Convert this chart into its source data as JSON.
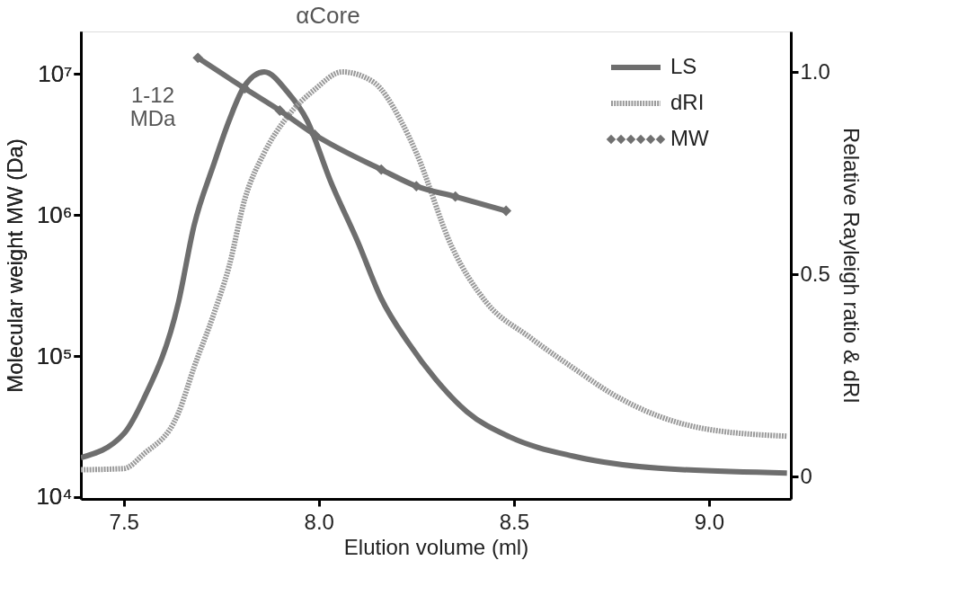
{
  "chart_data": {
    "type": "line",
    "title": "αCore",
    "xlabel": "Elution volume (ml)",
    "ylabel": "Molecular weight MW (Da)",
    "y2label": "Relative Rayleigh ratio & dRI",
    "annotations": [
      "1-12\nMDa"
    ],
    "xlim": [
      7.39,
      9.21
    ],
    "xticks": [
      7.5,
      {
        "value": 8.0,
        "label": "8.0"
      },
      8.5,
      {
        "value": 9.0,
        "label": "9.0"
      }
    ],
    "ylim": [
      9700,
      20000000
    ],
    "yticks": [
      {
        "value": 10000,
        "label": "10⁴"
      },
      {
        "value": 100000,
        "label": "10⁵"
      },
      {
        "value": 1000000,
        "label": "10⁶"
      },
      {
        "value": 10000000,
        "label": "10⁷"
      }
    ],
    "y2lim": [
      -0.055,
      1.1
    ],
    "y2ticks": [
      0,
      0.5,
      {
        "value": 1.0,
        "label": "1.0"
      }
    ],
    "log": "y",
    "grid": false,
    "legend": "top right",
    "series": [
      {
        "name": "LS",
        "color": "#6e6e6e",
        "axis": "y2",
        "line_style": "solid",
        "marker": "none",
        "x": [
          7.39,
          7.5,
          7.55,
          7.64,
          7.68,
          7.73,
          7.77,
          7.81,
          7.86,
          7.92,
          7.97,
          8.03,
          8.1,
          8.16,
          8.23,
          8.3,
          8.38,
          8.49,
          8.65,
          8.87,
          9.2
        ],
        "values": [
          0.047,
          0.106,
          0.19,
          0.43,
          0.62,
          0.77,
          0.88,
          0.966,
          1.0,
          0.95,
          0.88,
          0.73,
          0.58,
          0.44,
          0.33,
          0.24,
          0.16,
          0.098,
          0.051,
          0.021,
          0.009
        ]
      },
      {
        "name": "dRI",
        "color": "#9a9a9a",
        "axis": "y2",
        "line_style": "dotted",
        "marker": "none",
        "x": [
          7.39,
          7.5,
          7.55,
          7.64,
          7.68,
          7.73,
          7.77,
          7.81,
          7.86,
          7.92,
          7.99,
          8.06,
          8.14,
          8.21,
          8.25,
          8.34,
          8.43,
          8.54,
          8.65,
          8.76,
          8.87,
          8.98,
          9.2
        ],
        "values": [
          0.017,
          0.02,
          0.055,
          0.157,
          0.27,
          0.4,
          0.52,
          0.685,
          0.8,
          0.89,
          0.957,
          1.0,
          0.975,
          0.88,
          0.8,
          0.57,
          0.43,
          0.345,
          0.27,
          0.2,
          0.15,
          0.12,
          0.1
        ]
      },
      {
        "name": "MW",
        "color": "#707070",
        "axis": "y",
        "line_style": "solid",
        "marker": "diamond",
        "x": [
          7.69,
          7.81,
          7.9,
          7.99,
          8.16,
          8.25,
          8.35,
          8.48
        ],
        "values": [
          13000000,
          7900000,
          5500000,
          3700000,
          2100000,
          1600000,
          1350000,
          1070000
        ]
      }
    ]
  }
}
